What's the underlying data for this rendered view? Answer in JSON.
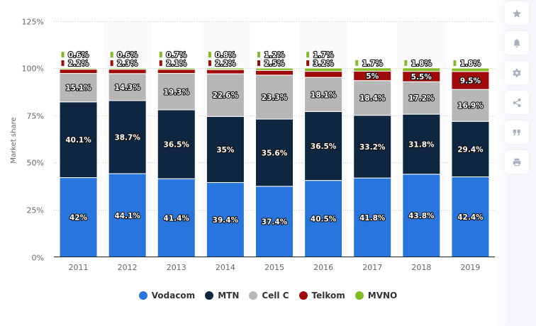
{
  "chart_data": {
    "type": "bar",
    "stacked": true,
    "title": "",
    "xlabel": "",
    "ylabel": "Market share",
    "ylim": [
      0,
      125
    ],
    "yticks": [
      0,
      25,
      50,
      75,
      100,
      125
    ],
    "ytick_labels": [
      "0%",
      "25%",
      "50%",
      "75%",
      "100%",
      "125%"
    ],
    "grid": true,
    "legend_position": "bottom",
    "categories": [
      "2011",
      "2012",
      "2013",
      "2014",
      "2015",
      "2016",
      "2017",
      "2018",
      "2019"
    ],
    "series": [
      {
        "name": "Vodacom",
        "color": "#2876dd",
        "values": [
          42,
          44.1,
          41.4,
          39.4,
          37.4,
          40.5,
          41.8,
          43.8,
          42.4
        ],
        "labels": [
          "42%",
          "44.1%",
          "41.4%",
          "39.4%",
          "37.4%",
          "40.5%",
          "41.8%",
          "43.8%",
          "42.4%"
        ]
      },
      {
        "name": "MTN",
        "color": "#0f2640",
        "values": [
          40.1,
          38.7,
          36.5,
          35,
          35.6,
          36.5,
          33.2,
          31.8,
          29.4
        ],
        "labels": [
          "40.1%",
          "38.7%",
          "36.5%",
          "35%",
          "35.6%",
          "36.5%",
          "33.2%",
          "31.8%",
          "29.4%"
        ]
      },
      {
        "name": "Cell C",
        "color": "#b7b7b7",
        "values": [
          15.1,
          14.3,
          19.3,
          22.6,
          23.3,
          18.1,
          18.4,
          17.2,
          16.9
        ],
        "labels": [
          "15.1%",
          "14.3%",
          "19.3%",
          "22.6%",
          "23.3%",
          "18.1%",
          "18.4%",
          "17.2%",
          "16.9%"
        ]
      },
      {
        "name": "Telkom",
        "color": "#a10a0a",
        "values": [
          2.2,
          2.3,
          2.1,
          2.2,
          2.5,
          3.2,
          5,
          5.5,
          9.5
        ],
        "labels": [
          "2.2%",
          "2.3%",
          "2.1%",
          "2.2%",
          "2.5%",
          "3.2%",
          "5%",
          "5.5%",
          "9.5%"
        ]
      },
      {
        "name": "MVNO",
        "color": "#83ba27",
        "values": [
          0.6,
          0.6,
          0.7,
          0.8,
          1.2,
          1.7,
          1.7,
          1.8,
          1.8
        ],
        "labels": [
          "0.6%",
          "0.6%",
          "0.7%",
          "0.8%",
          "1.2%",
          "1.7%",
          "1.7%",
          "1.8%",
          "1.8%"
        ]
      }
    ]
  },
  "side_toolbar": [
    {
      "icon": "star-icon",
      "label": "favorite"
    },
    {
      "icon": "bell-icon",
      "label": "notifications"
    },
    {
      "icon": "gear-icon",
      "label": "settings"
    },
    {
      "icon": "share-icon",
      "label": "share"
    },
    {
      "icon": "quote-icon",
      "label": "cite"
    },
    {
      "icon": "print-icon",
      "label": "print"
    }
  ]
}
